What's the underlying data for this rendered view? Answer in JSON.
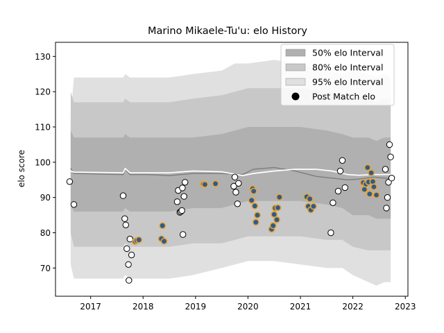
{
  "chart_data": {
    "type": "scatter",
    "title": "Marino Mikaele-Tu'u: elo History",
    "xlabel": "",
    "ylabel": "elo score",
    "xlim": [
      2016.33,
      2023.05
    ],
    "ylim": [
      62,
      134
    ],
    "x_ticks": [
      2017,
      2018,
      2019,
      2020,
      2021,
      2022,
      2023
    ],
    "x_tick_labels": [
      "2017",
      "2018",
      "2019",
      "2020",
      "2021",
      "2022",
      "2023"
    ],
    "y_ticks": [
      70,
      80,
      90,
      100,
      110,
      120,
      130
    ],
    "y_tick_labels": [
      "70",
      "80",
      "90",
      "100",
      "110",
      "120",
      "130"
    ],
    "grid": false,
    "legend_position": "top-right",
    "legend": [
      {
        "label": "50% elo Interval",
        "color": "#b0b0b0",
        "kind": "patch"
      },
      {
        "label": "80% elo Interval",
        "color": "#c8c8c8",
        "kind": "patch"
      },
      {
        "label": "95% elo Interval",
        "color": "#e0e0e0",
        "kind": "patch"
      },
      {
        "label": "Post Match elo",
        "color": "#000000",
        "kind": "marker"
      }
    ],
    "band_x": [
      2016.62,
      2016.68,
      2017.45,
      2017.62,
      2017.66,
      2017.75,
      2018.0,
      2018.5,
      2018.95,
      2019.5,
      2019.75,
      2020.0,
      2020.5,
      2021.0,
      2021.5,
      2021.8,
      2022.0,
      2022.3,
      2022.45,
      2022.6,
      2022.72
    ],
    "bands": [
      {
        "name": "95% elo Interval",
        "color": "#e0e0e0",
        "upper": [
          113,
          124,
          124,
          124,
          125,
          124,
          124,
          124,
          125,
          126,
          128,
          128,
          129,
          128,
          126,
          125,
          126,
          125,
          124,
          125,
          124
        ],
        "lower": [
          71,
          67,
          67,
          67,
          68,
          67,
          67,
          67,
          68,
          70,
          71,
          72,
          72,
          71,
          70,
          70,
          68,
          66,
          65,
          66,
          66
        ]
      },
      {
        "name": "80% elo Interval",
        "color": "#c8c8c8",
        "upper": [
          120,
          117,
          117,
          117,
          118,
          117,
          117,
          117,
          118,
          119,
          120,
          121,
          121,
          121,
          120,
          119,
          118,
          118,
          117,
          118,
          118
        ],
        "lower": [
          80,
          76,
          76,
          76,
          77,
          76,
          76,
          76,
          77,
          77,
          78,
          79,
          79,
          79,
          78,
          78,
          76,
          75,
          75,
          75,
          75
        ]
      },
      {
        "name": "50% elo Interval",
        "color": "#b0b0b0",
        "upper": [
          109,
          107,
          107,
          107,
          108,
          107,
          107,
          107,
          107,
          108,
          109,
          110,
          110,
          110,
          109,
          108,
          107,
          107,
          106,
          107,
          107
        ],
        "lower": [
          88,
          86,
          86,
          86,
          87,
          86,
          86,
          86,
          87,
          87,
          88,
          89,
          89,
          89,
          88,
          87,
          85,
          85,
          84,
          84,
          84
        ]
      }
    ],
    "mean_line": {
      "color": "#808080",
      "x": [
        2016.62,
        2016.68,
        2017.62,
        2017.66,
        2017.75,
        2018.1,
        2018.5,
        2018.95,
        2019.5,
        2019.9,
        2020.1,
        2020.5,
        2020.9,
        2021.3,
        2021.6,
        2021.9,
        2022.1,
        2022.4,
        2022.6,
        2022.72
      ],
      "y": [
        98.3,
        96.8,
        96.5,
        98,
        96.5,
        96.5,
        96.2,
        96.8,
        96.8,
        96.5,
        98,
        98.5,
        97.5,
        96,
        95.5,
        95,
        95.2,
        95.8,
        95.5,
        95.3
      ]
    },
    "median_line": {
      "color": "#ffffff",
      "x": [
        2016.62,
        2016.68,
        2017.62,
        2017.66,
        2017.75,
        2018.1,
        2018.5,
        2018.95,
        2019.5,
        2019.9,
        2020.1,
        2020.5,
        2020.9,
        2021.3,
        2021.6,
        2021.9,
        2022.1,
        2022.4,
        2022.6,
        2022.72
      ],
      "y": [
        97.5,
        97.2,
        97,
        98.2,
        97,
        97,
        97,
        97.5,
        97.3,
        96.2,
        96.8,
        97.5,
        98,
        98,
        97.5,
        96.5,
        96.3,
        96.5,
        96.5,
        96.5
      ]
    },
    "points_white": {
      "x": [
        2016.6,
        2016.68,
        2017.62,
        2017.65,
        2017.67,
        2017.69,
        2017.72,
        2017.73,
        2017.75,
        2017.78,
        2018.65,
        2018.67,
        2018.7,
        2018.72,
        2018.74,
        2018.75,
        2018.76,
        2018.78,
        2018.8,
        2019.73,
        2019.75,
        2019.77,
        2019.8,
        2019.82,
        2021.58,
        2021.62,
        2021.72,
        2021.76,
        2021.8,
        2021.85,
        2022.62,
        2022.64,
        2022.66,
        2022.68,
        2022.7,
        2022.72,
        2022.74
      ],
      "y": [
        94.5,
        88,
        90.5,
        84,
        82.2,
        75.5,
        71,
        66.5,
        78.2,
        73.7,
        88.8,
        92,
        85.8,
        86,
        86.3,
        92.7,
        79.5,
        90.3,
        94.3,
        93.2,
        95.8,
        91.5,
        88.2,
        94,
        80,
        88.5,
        91.8,
        97.5,
        100.5,
        92.8,
        98,
        87,
        90,
        94.3,
        105,
        101.5,
        95.5
      ]
    },
    "points_blue": {
      "x": [
        2017.85,
        2017.88,
        2017.92,
        2018.35,
        2018.37,
        2018.4,
        2019.15,
        2019.18,
        2019.38,
        2020.07,
        2020.09,
        2020.11,
        2020.13,
        2020.15,
        2020.18,
        2020.45,
        2020.48,
        2020.5,
        2020.52,
        2020.55,
        2020.57,
        2020.6,
        2021.12,
        2021.15,
        2021.18,
        2021.2,
        2021.25,
        2022.2,
        2022.22,
        2022.25,
        2022.28,
        2022.3,
        2022.32,
        2022.35,
        2022.38,
        2022.4,
        2022.45
      ],
      "y": [
        77.5,
        77.8,
        78,
        78.3,
        82,
        77.6,
        93.8,
        93.7,
        93.9,
        89.2,
        92.5,
        91.8,
        87.6,
        83,
        85,
        81,
        82,
        85.2,
        87,
        83.7,
        87.1,
        90.1,
        90.2,
        87.5,
        89.6,
        86.5,
        87.5,
        94.2,
        92.3,
        93.8,
        98.5,
        94.4,
        91,
        97,
        94.5,
        93,
        90.7
      ]
    }
  }
}
